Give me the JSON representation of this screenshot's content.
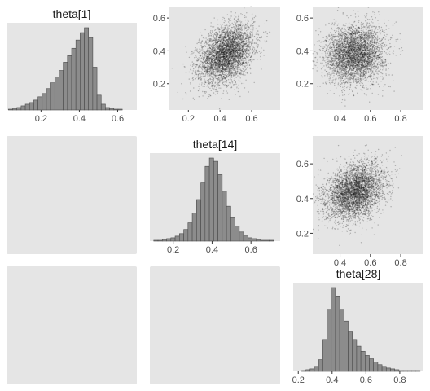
{
  "chart_data": {
    "type": "pairs",
    "panel_background": "#e5e5e5",
    "bar_fill": "#8c8c8c",
    "bar_stroke": "#4a4a4a",
    "point_color": "#1a1a1a",
    "variables": [
      "theta[1]",
      "theta[14]",
      "theta[28]"
    ],
    "grid": false,
    "layout": [
      {
        "row": 0,
        "col": 0,
        "type": "histogram",
        "var": 0,
        "title": "theta[1]",
        "xlim": [
          0.02,
          0.7
        ],
        "x_ticks": [
          0.2,
          0.4,
          0.6
        ],
        "x_tick_labels": [
          "0.2",
          "0.4",
          "0.6"
        ],
        "bin_start": 0.03,
        "bin_width": 0.022,
        "counts": [
          1,
          2,
          3,
          5,
          7,
          9,
          12,
          16,
          20,
          26,
          33,
          40,
          48,
          58,
          66,
          75,
          85,
          94,
          100,
          88,
          52,
          18,
          7,
          3,
          2,
          1,
          1
        ]
      },
      {
        "row": 0,
        "col": 1,
        "type": "scatter",
        "xvar": 1,
        "yvar": 0,
        "xlim": [
          0.08,
          0.78
        ],
        "ylim": [
          0.04,
          0.67
        ],
        "x_ticks": [
          0.2,
          0.4,
          0.6
        ],
        "x_tick_labels": [
          "0.2",
          "0.4",
          "0.6"
        ],
        "y_ticks": [
          0.2,
          0.4,
          0.6
        ],
        "y_tick_labels": [
          "0.2",
          "0.4",
          "0.6"
        ],
        "cloud": {
          "x_mean": 0.44,
          "x_sd": 0.085,
          "y_mean": 0.38,
          "y_sd": 0.088,
          "rho": 0.35,
          "n": 4000
        }
      },
      {
        "row": 0,
        "col": 2,
        "type": "scatter",
        "xvar": 2,
        "yvar": 0,
        "xlim": [
          0.22,
          0.95
        ],
        "ylim": [
          0.04,
          0.67
        ],
        "x_ticks": [
          0.4,
          0.6,
          0.8
        ],
        "x_tick_labels": [
          "0.4",
          "0.6",
          "0.8"
        ],
        "y_ticks": [
          0.2,
          0.4,
          0.6
        ],
        "y_tick_labels": [
          "0.2",
          "0.4",
          "0.6"
        ],
        "cloud": {
          "x_mean": 0.5,
          "x_sd": 0.095,
          "y_mean": 0.38,
          "y_sd": 0.088,
          "rho": 0.1,
          "n": 4000
        }
      },
      {
        "row": 1,
        "col": 0,
        "type": "blank"
      },
      {
        "row": 1,
        "col": 1,
        "type": "histogram",
        "var": 1,
        "title": "theta[14]",
        "xlim": [
          0.08,
          0.75
        ],
        "x_ticks": [
          0.2,
          0.4,
          0.6
        ],
        "x_tick_labels": [
          "0.2",
          "0.4",
          "0.6"
        ],
        "bin_start": 0.1,
        "bin_width": 0.022,
        "counts": [
          1,
          1,
          2,
          3,
          4,
          6,
          9,
          14,
          22,
          34,
          50,
          70,
          90,
          100,
          96,
          80,
          60,
          42,
          28,
          18,
          11,
          7,
          4,
          3,
          2,
          1,
          1,
          1
        ]
      },
      {
        "row": 1,
        "col": 2,
        "type": "scatter",
        "xvar": 2,
        "yvar": 1,
        "xlim": [
          0.22,
          0.95
        ],
        "ylim": [
          0.08,
          0.76
        ],
        "x_ticks": [
          0.4,
          0.6,
          0.8
        ],
        "x_tick_labels": [
          "0.4",
          "0.6",
          "0.8"
        ],
        "y_ticks": [
          0.2,
          0.4,
          0.6
        ],
        "y_tick_labels": [
          "0.2",
          "0.4",
          "0.6"
        ],
        "cloud": {
          "x_mean": 0.5,
          "x_sd": 0.095,
          "y_mean": 0.44,
          "y_sd": 0.08,
          "rho": 0.3,
          "n": 4000
        }
      },
      {
        "row": 2,
        "col": 0,
        "type": "blank"
      },
      {
        "row": 2,
        "col": 1,
        "type": "blank"
      },
      {
        "row": 2,
        "col": 2,
        "type": "histogram",
        "var": 2,
        "title": "theta[28]",
        "xlim": [
          0.17,
          0.94
        ],
        "x_ticks": [
          0.2,
          0.4,
          0.6,
          0.8
        ],
        "x_tick_labels": [
          "0.2",
          "0.4",
          "0.6",
          "0.8"
        ],
        "bin_start": 0.22,
        "bin_width": 0.025,
        "counts": [
          1,
          2,
          3,
          6,
          14,
          38,
          74,
          100,
          90,
          74,
          60,
          48,
          38,
          30,
          24,
          19,
          15,
          11,
          8,
          6,
          4,
          3,
          2,
          1,
          1,
          1,
          1,
          1
        ]
      }
    ]
  }
}
